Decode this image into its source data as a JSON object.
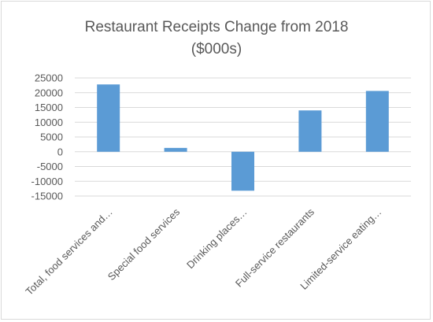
{
  "chart_data": {
    "type": "bar",
    "title_line1": "Restaurant Receipts Change from 2018",
    "title_line2": "($000s)",
    "categories": [
      "Total, food services and…",
      "Special food services",
      "Drinking places…",
      "Full-service restaurants",
      "Limited-service eating…"
    ],
    "values": [
      22800,
      1300,
      -13200,
      14000,
      20600
    ],
    "ylim": [
      -15000,
      25000
    ],
    "yticks": [
      25000,
      20000,
      15000,
      10000,
      5000,
      0,
      -5000,
      -10000,
      -15000
    ],
    "grid": true,
    "legend": "none",
    "bar_color": "#5b9bd5",
    "grid_color": "#d9d9d9"
  }
}
